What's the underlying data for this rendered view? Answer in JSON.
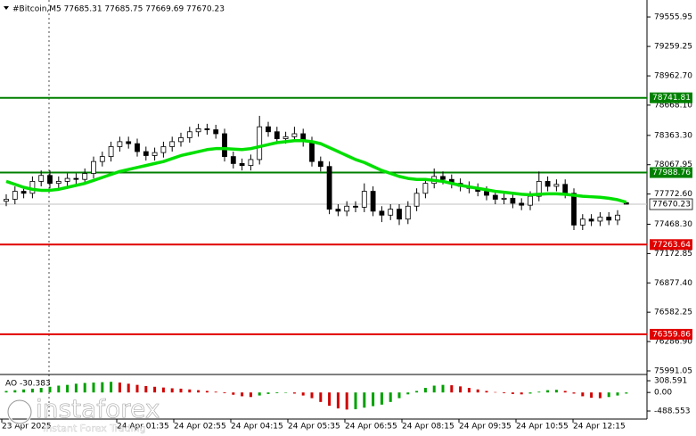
{
  "chart_data": {
    "type": "candlestick",
    "title": "#Bitcoin,M5  77685.31 77685.75 77669.69 77670.23",
    "candles": {
      "open": [
        77700,
        77720,
        77800,
        77780,
        77900,
        77960,
        77880,
        77900,
        77930,
        77920,
        77980,
        78100,
        78150,
        78250,
        78300,
        78280,
        78200,
        78160,
        78190,
        78250,
        78300,
        78340,
        78400,
        78430,
        78420,
        78380,
        78150,
        78080,
        78060,
        78120,
        78450,
        78400,
        78330,
        78350,
        78380,
        78300,
        78100,
        78050,
        77620,
        77600,
        77650,
        77640,
        77800,
        77600,
        77560,
        77620,
        77520,
        77650,
        77780,
        77880,
        77950,
        77920,
        77880,
        77850,
        77830,
        77800,
        77760,
        77720,
        77730,
        77680,
        77660,
        77750,
        77900,
        77850,
        77870,
        77780,
        77460,
        77520,
        77500,
        77540,
        77510,
        77685.31
      ],
      "high": [
        77770,
        77850,
        77850,
        77950,
        78010,
        78010,
        77950,
        77980,
        77980,
        78030,
        78150,
        78200,
        78300,
        78350,
        78350,
        78330,
        78250,
        78240,
        78300,
        78350,
        78390,
        78450,
        78480,
        78480,
        78470,
        78430,
        78200,
        78130,
        78170,
        78560,
        78500,
        78450,
        78400,
        78450,
        78430,
        78350,
        78150,
        78100,
        77670,
        77700,
        77700,
        77880,
        77850,
        77650,
        77670,
        77670,
        77700,
        77830,
        77930,
        78030,
        78000,
        77970,
        77930,
        77900,
        77880,
        77850,
        77810,
        77780,
        77780,
        77730,
        77800,
        78000,
        77950,
        77920,
        77920,
        77830,
        77570,
        77570,
        77590,
        77590,
        77610,
        77685.75
      ],
      "low": [
        77650,
        77670,
        77730,
        77730,
        77850,
        77830,
        77830,
        77850,
        77870,
        77870,
        77930,
        78050,
        78100,
        78200,
        78230,
        78150,
        78110,
        78110,
        78140,
        78200,
        78250,
        78290,
        78350,
        78370,
        78330,
        78100,
        78030,
        78010,
        78010,
        78070,
        78350,
        78280,
        78280,
        78300,
        78250,
        78050,
        78000,
        77570,
        77550,
        77550,
        77590,
        77590,
        77550,
        77490,
        77510,
        77460,
        77470,
        77600,
        77730,
        77830,
        77870,
        77830,
        77800,
        77780,
        77750,
        77710,
        77670,
        77670,
        77630,
        77610,
        77610,
        77700,
        77800,
        77800,
        77730,
        77410,
        77410,
        77450,
        77450,
        77460,
        77460,
        77669.69
      ],
      "close": [
        77720,
        77800,
        77780,
        77900,
        77960,
        77880,
        77900,
        77930,
        77920,
        77980,
        78100,
        78150,
        78250,
        78300,
        78280,
        78200,
        78160,
        78190,
        78250,
        78300,
        78340,
        78400,
        78430,
        78420,
        78380,
        78150,
        78080,
        78060,
        78120,
        78450,
        78400,
        78330,
        78350,
        78380,
        78300,
        78100,
        78050,
        77620,
        77600,
        77650,
        77640,
        77800,
        77600,
        77560,
        77620,
        77520,
        77650,
        77780,
        77880,
        77950,
        77920,
        77880,
        77850,
        77830,
        77800,
        77760,
        77720,
        77730,
        77680,
        77660,
        77750,
        77900,
        77850,
        77870,
        77780,
        77460,
        77520,
        77500,
        77540,
        77510,
        77560,
        77670.23
      ]
    },
    "moving_average": {
      "color": "#00e000",
      "values": [
        77900,
        77870,
        77840,
        77820,
        77810,
        77810,
        77820,
        77840,
        77860,
        77880,
        77910,
        77940,
        77970,
        78000,
        78020,
        78040,
        78060,
        78080,
        78100,
        78130,
        78160,
        78180,
        78200,
        78220,
        78230,
        78230,
        78225,
        78220,
        78230,
        78250,
        78270,
        78290,
        78300,
        78310,
        78310,
        78300,
        78280,
        78240,
        78200,
        78160,
        78120,
        78090,
        78050,
        78010,
        77980,
        77950,
        77930,
        77920,
        77920,
        77910,
        77900,
        77880,
        77860,
        77845,
        77830,
        77815,
        77800,
        77790,
        77780,
        77770,
        77765,
        77770,
        77775,
        77775,
        77770,
        77760,
        77750,
        77745,
        77740,
        77730,
        77715,
        77690
      ]
    },
    "ylim": [
      75955,
      79700
    ],
    "yticks": [
      79555.95,
      79259.25,
      {
        "value": 78962.7,
        "label": "78962.70"
      },
      {
        "value": 78668.1,
        "label": "78668.10"
      },
      {
        "value": 78363.3,
        "label": "78363.30"
      },
      78067.95,
      {
        "value": 77772.6,
        "label": "77772.60"
      },
      {
        "value": 77468.3,
        "label": "77468.30"
      },
      77172.85,
      {
        "value": 76877.4,
        "label": "76877.40"
      },
      76582.25,
      {
        "value": 76286.9,
        "label": "76286.90"
      },
      75991.05
    ],
    "levels": [
      {
        "value": 78741.81,
        "color": "#008000"
      },
      {
        "value": 77988.76,
        "color": "#008000"
      },
      {
        "value": 77263.64,
        "color": "#e00000"
      },
      {
        "value": 76359.86,
        "color": "#e00000"
      }
    ],
    "current_price": 77670.23,
    "xticks": [
      "23 Apr 2025",
      "24 Apr 01:35",
      "24 Apr 02:55",
      "24 Apr 04:15",
      "24 Apr 05:35",
      "24 Apr 06:55",
      "24 Apr 08:15",
      "24 Apr 09:35",
      "24 Apr 10:55",
      "24 Apr 12:15"
    ],
    "indicator": {
      "label": "AO -30.383",
      "up_color": "#00a000",
      "down_color": "#d00000",
      "values": [
        40,
        60,
        80,
        100,
        120,
        150,
        180,
        200,
        230,
        250,
        260,
        270,
        280,
        260,
        230,
        200,
        170,
        150,
        130,
        110,
        100,
        80,
        60,
        40,
        20,
        -20,
        -60,
        -100,
        -120,
        -80,
        -40,
        -20,
        -10,
        -30,
        -80,
        -150,
        -250,
        -350,
        -420,
        -450,
        -440,
        -400,
        -360,
        -320,
        -250,
        -150,
        -50,
        40,
        120,
        180,
        200,
        190,
        160,
        120,
        80,
        40,
        10,
        -20,
        -40,
        -50,
        -30,
        20,
        60,
        70,
        40,
        -30,
        -100,
        -140,
        -150,
        -120,
        -80,
        -30.383
      ],
      "ylim": [
        -700,
        450
      ],
      "yticks": [
        308.591,
        {
          "value": 0,
          "label": "0.00"
        },
        -488.553
      ]
    },
    "watermark": {
      "brand": "instaforex",
      "slogan": "Instant Forex Trading"
    }
  }
}
